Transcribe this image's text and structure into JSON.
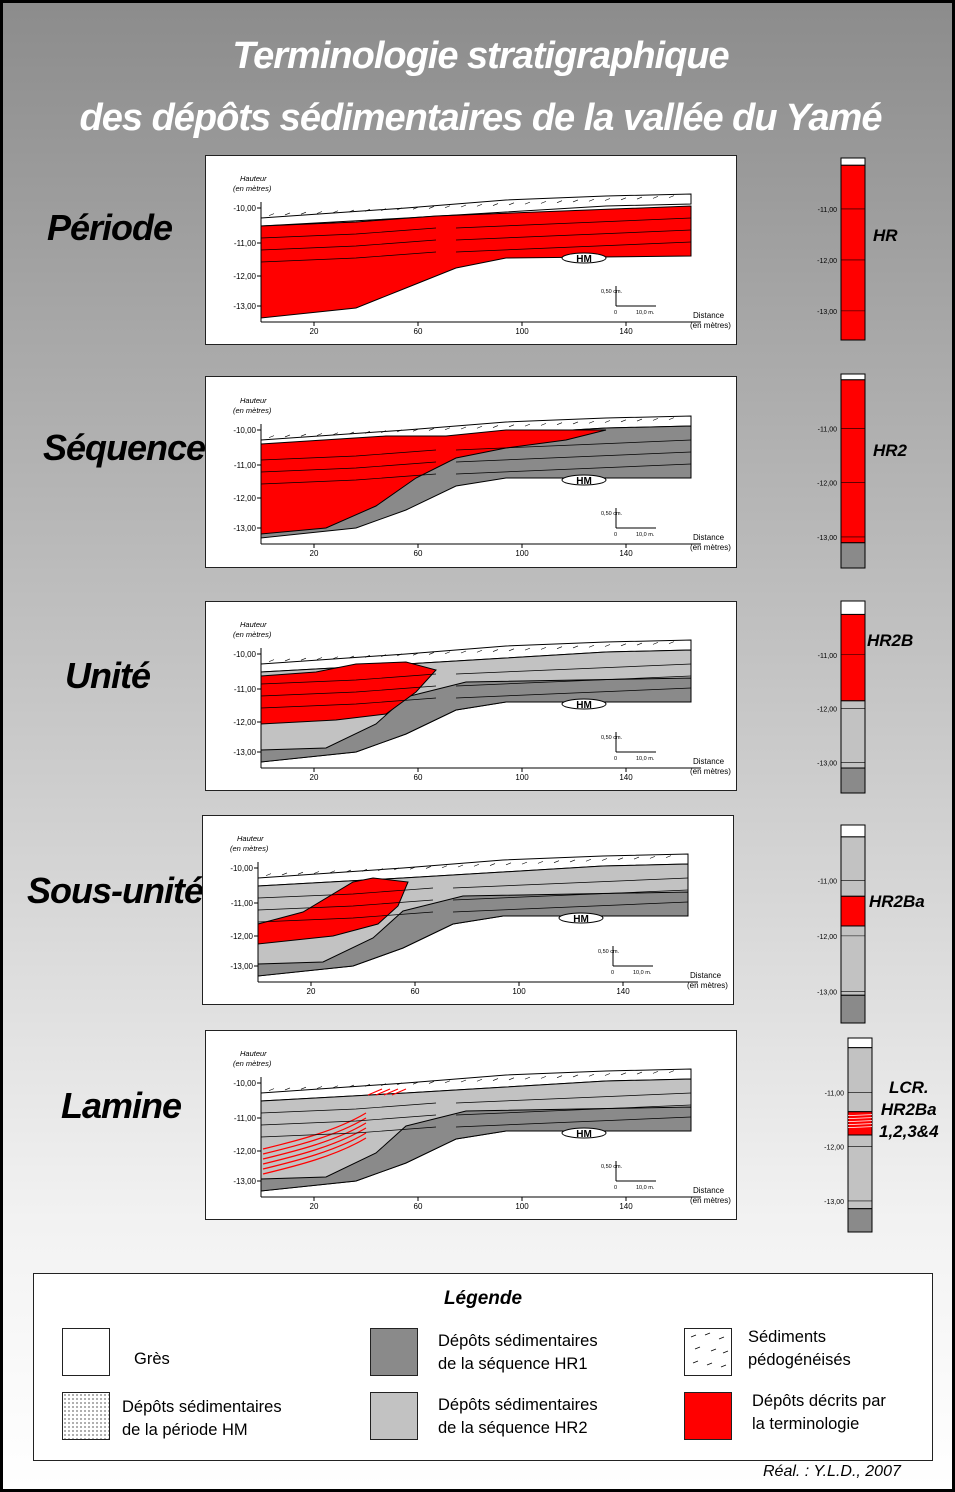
{
  "title": {
    "line1": "Terminologie stratigraphique",
    "line2": "des dépôts sédimentaires de la vallée du Yamé"
  },
  "axis_texts": {
    "hauteur": "Hauteur",
    "en_metres_paren": "(en mètres)",
    "distance": "Distance",
    "scale_v": "0,50 cm.",
    "scale_h": "10,0 m.",
    "scale_zero": "0",
    "hm": "HM"
  },
  "colors": {
    "red": "#ff0000",
    "hr1_dark": "#8a8a8a",
    "hr2_light": "#c2c2c2",
    "white": "#ffffff"
  },
  "rows": [
    {
      "level": "Période",
      "label": "HR",
      "column_label": "HR",
      "y_ticks": [
        "-10,00",
        "-11,00",
        "-12,00",
        "-13,00"
      ],
      "x_ticks": [
        "20",
        "60",
        "100",
        "140"
      ],
      "column_ticks": [
        "-11,00",
        "-12,00",
        "-13,00"
      ]
    },
    {
      "level": "Séquence",
      "label": "HR2",
      "column_label": "HR2",
      "y_ticks": [
        "-10,00",
        "-11,00",
        "-12,00",
        "-13,00"
      ],
      "x_ticks": [
        "20",
        "60",
        "100",
        "140"
      ],
      "column_ticks": [
        "-11,00",
        "-12,00",
        "-13,00"
      ]
    },
    {
      "level": "Unité",
      "label": "HR2B",
      "column_label": "HR2B",
      "y_ticks": [
        "-10,00",
        "-11,00",
        "-12,00",
        "-13,00"
      ],
      "x_ticks": [
        "20",
        "60",
        "100",
        "140"
      ],
      "column_ticks": [
        "-11,00",
        "-12,00",
        "-13,00"
      ]
    },
    {
      "level": "Sous-unité",
      "label": "HR2Ba",
      "column_label": "HR2Ba",
      "y_ticks": [
        "-10,00",
        "-11,00",
        "-12,00",
        "-13,00"
      ],
      "x_ticks": [
        "20",
        "60",
        "100",
        "140"
      ],
      "column_ticks": [
        "-11,00",
        "-12,00",
        "-13,00"
      ]
    },
    {
      "level": "Lamine",
      "label": "LCR.HR2Ba1,2,3 & 4",
      "column_label_lines": [
        "LCR.",
        "HR2Ba",
        "1,2,3&4"
      ],
      "y_ticks": [
        "-10,00",
        "-11,00",
        "-12,00",
        "-13,00"
      ],
      "x_ticks": [
        "20",
        "60",
        "100",
        "140"
      ],
      "column_ticks": [
        "-11,00",
        "-12,00",
        "-13,00"
      ]
    }
  ],
  "legend": {
    "title": "Légende",
    "items": [
      {
        "label_lines": [
          "Grès"
        ],
        "swatch": "white"
      },
      {
        "label_lines": [
          "Dépôts sédimentaires",
          "de la séquence HR1"
        ],
        "swatch": "hr1_dark"
      },
      {
        "label_lines": [
          "Sédiments",
          "pédogénéisés"
        ],
        "swatch": "pedo"
      },
      {
        "label_lines": [
          "Dépôts sédimentaires",
          "de la période HM"
        ],
        "swatch": "dotted"
      },
      {
        "label_lines": [
          "Dépôts sédimentaires",
          "de la séquence HR2"
        ],
        "swatch": "hr2_light"
      },
      {
        "label_lines": [
          "Dépôts décrits par",
          "la terminologie"
        ],
        "swatch": "red"
      }
    ]
  },
  "credit": "Réal. : Y.L.D., 2007"
}
